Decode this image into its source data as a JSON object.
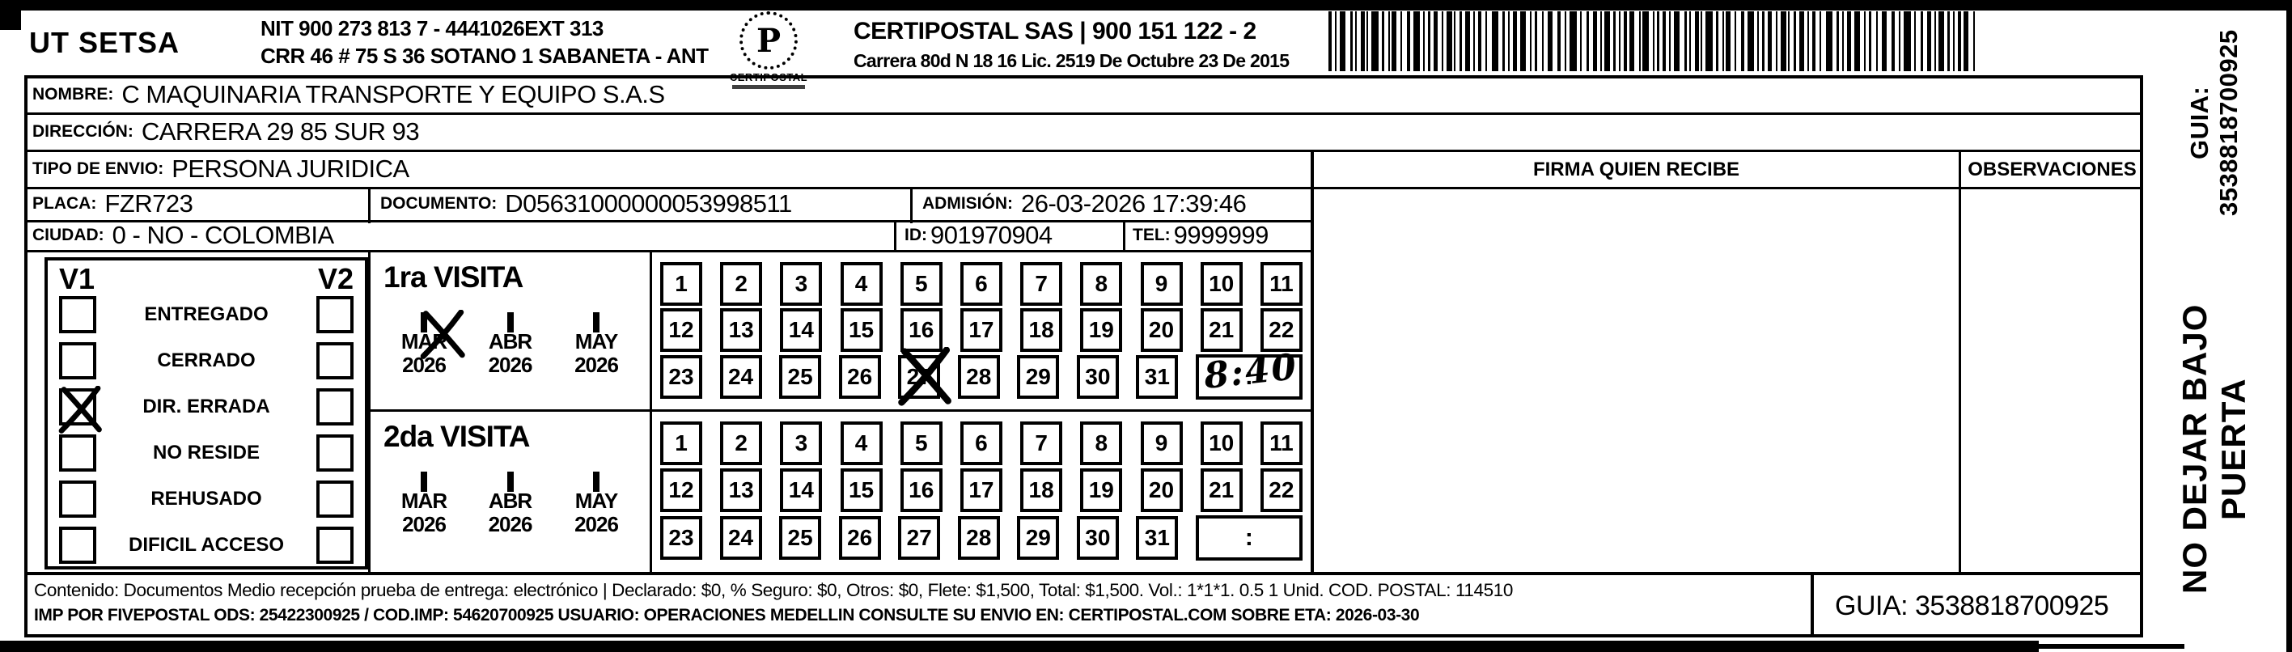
{
  "header": {
    "sender": "UT SETSA",
    "nit_line1": "NIT 900 273 813 7 - 4441026EXT 313",
    "nit_line2": "CRR 46 # 75 S 36 SOTANO 1 SABANETA - ANT",
    "logo_text": "CERTIPOSTAL",
    "company_line1": "CERTIPOSTAL SAS | 900 151 122 - 2",
    "company_line2": "Carrera 80d N 18 16  Lic. 2519 De Octubre 23 De 2015"
  },
  "recipient": {
    "nombre_label": "NOMBRE:",
    "nombre": "C MAQUINARIA TRANSPORTE Y EQUIPO S.A.S",
    "direccion_label": "DIRECCIÓN:",
    "direccion": "CARRERA 29 85 SUR 93",
    "tipo_label": "TIPO DE ENVIO:",
    "tipo": "PERSONA JURIDICA",
    "placa_label": "PLACA:",
    "placa": "FZR723",
    "documento_label": "DOCUMENTO:",
    "documento": "D05631000000053998511",
    "admision_label": "ADMISIÓN:",
    "admision": "26-03-2026 17:39:46",
    "ciudad_label": "CIUDAD:",
    "ciudad": "0 - NO - COLOMBIA",
    "id_label": "ID:",
    "id": "901970904",
    "tel_label": "TEL:",
    "tel": "9999999"
  },
  "firma": {
    "label": "FIRMA QUIEN RECIBE"
  },
  "observaciones": {
    "label": "OBSERVACIONES"
  },
  "status": {
    "v1_header": "V1",
    "v2_header": "V2",
    "items": [
      {
        "label": "ENTREGADO",
        "v1_checked": false,
        "v2_checked": false
      },
      {
        "label": "CERRADO",
        "v1_checked": false,
        "v2_checked": false
      },
      {
        "label": "DIR. ERRADA",
        "v1_checked": true,
        "v2_checked": false
      },
      {
        "label": "NO RESIDE",
        "v1_checked": false,
        "v2_checked": false
      },
      {
        "label": "REHUSADO",
        "v1_checked": false,
        "v2_checked": false
      },
      {
        "label": "DIFICIL ACCESO",
        "v1_checked": false,
        "v2_checked": false
      }
    ]
  },
  "day_numbers": [
    1,
    2,
    3,
    4,
    5,
    6,
    7,
    8,
    9,
    10,
    11,
    12,
    13,
    14,
    15,
    16,
    17,
    18,
    19,
    20,
    21,
    22,
    23,
    24,
    25,
    26,
    27,
    28,
    29,
    30,
    31
  ],
  "visits": [
    {
      "title": "1ra VISITA",
      "months": [
        {
          "label": "MAR",
          "year": "2026",
          "checked": true
        },
        {
          "label": "ABR",
          "year": "2026",
          "checked": false
        },
        {
          "label": "MAY",
          "year": "2026",
          "checked": false
        }
      ],
      "marked_day": 27,
      "time_separator": ":",
      "time_handwritten": "8:40"
    },
    {
      "title": "2da VISITA",
      "months": [
        {
          "label": "MAR",
          "year": "2026",
          "checked": false
        },
        {
          "label": "ABR",
          "year": "2026",
          "checked": false
        },
        {
          "label": "MAY",
          "year": "2026",
          "checked": false
        }
      ],
      "marked_day": null,
      "time_separator": ":",
      "time_handwritten": ""
    }
  ],
  "side": {
    "line1": "NO DEJAR BAJO PUERTA",
    "line2": "GUIA: 3538818700925"
  },
  "footer": {
    "line1": "Contenido: Documentos Medio recepción prueba de entrega: electrónico | Declarado: $0, % Seguro: $0, Otros: $0, Flete: $1,500, Total: $1,500. Vol.: 1*1*1. 0.5  1 Unid. COD. POSTAL: 114510",
    "line2": "IMP POR FIVEPOSTAL ODS: 25422300925 / COD.IMP: 54620700925 USUARIO: OPERACIONES MEDELLIN CONSULTE SU ENVIO EN: CERTIPOSTAL.COM SOBRE ETA: 2026-03-30",
    "guia": "GUIA: 3538818700925"
  },
  "colors": {
    "ink": "#000000",
    "paper": "#ffffff"
  }
}
